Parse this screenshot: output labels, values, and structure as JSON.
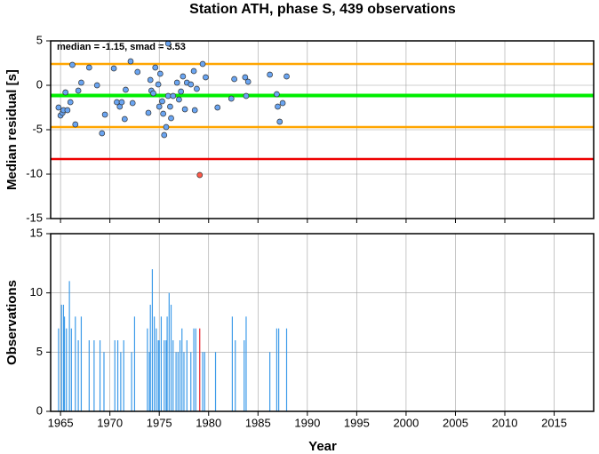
{
  "chart_data": [
    {
      "type": "scatter",
      "title": "Station ATH, phase S, 439 observations",
      "y_label": "Median residual [s]",
      "annotation": "median = -1.15, smad = 3.53",
      "xlim": [
        1964,
        2019
      ],
      "xticks": [
        1965,
        1970,
        1975,
        1980,
        1985,
        1990,
        1995,
        2000,
        2005,
        2010,
        2015
      ],
      "show_xtick_labels": false,
      "ylim": [
        -15,
        5
      ],
      "yticks": [
        5,
        0,
        -5,
        -10,
        -15
      ],
      "grid": true,
      "hlines": [
        {
          "value": 2.4,
          "color": "#ffa500"
        },
        {
          "value": -1.15,
          "color": "#00ee00"
        },
        {
          "value": -4.7,
          "color": "#ffa500"
        },
        {
          "value": -8.3,
          "color": "#ee0000"
        }
      ],
      "series": [
        {
          "color": "#6aa5f2",
          "x": [
            1964.8,
            1965.0,
            1965.2,
            1965.3,
            1965.5,
            1965.7,
            1966.0,
            1966.2,
            1966.5,
            1966.8,
            1967.1,
            1967.9,
            1968.7,
            1969.2,
            1969.5,
            1970.4,
            1970.7,
            1971.0,
            1971.2,
            1971.5,
            1971.6,
            1972.1,
            1972.3,
            1972.8,
            1973.9,
            1974.1,
            1974.2,
            1974.4,
            1974.6,
            1974.9,
            1975.0,
            1975.1,
            1975.3,
            1975.4,
            1975.5,
            1975.7,
            1975.9,
            1975.9,
            1976.1,
            1976.2,
            1976.4,
            1976.8,
            1977.0,
            1977.2,
            1977.4,
            1977.6,
            1977.8,
            1978.2,
            1978.5,
            1978.6,
            1978.8,
            1979.4,
            1979.7,
            1980.9,
            1982.3,
            1982.6,
            1983.7,
            1983.8,
            1984.0,
            1986.2,
            1986.9,
            1987.0,
            1987.2,
            1987.5,
            1987.9
          ],
          "values": [
            -2.5,
            -3.4,
            -3.1,
            -2.8,
            -0.8,
            -2.8,
            -1.9,
            2.3,
            -4.4,
            -0.6,
            0.3,
            2.0,
            0.0,
            -5.4,
            -3.3,
            1.9,
            -1.9,
            -2.4,
            -1.9,
            -3.8,
            -0.5,
            2.7,
            -2.0,
            1.5,
            -3.1,
            0.6,
            -0.6,
            -0.9,
            2.0,
            0.1,
            -2.4,
            1.3,
            -1.8,
            -3.2,
            -5.6,
            -4.7,
            4.7,
            -1.2,
            -2.4,
            -3.7,
            -1.2,
            0.3,
            -1.6,
            -0.7,
            1.0,
            -2.7,
            0.3,
            0.1,
            1.6,
            -2.8,
            -0.4,
            2.4,
            0.9,
            -2.5,
            -1.5,
            0.7,
            0.9,
            -1.2,
            0.4,
            1.2,
            -1.0,
            -2.4,
            -4.1,
            -2.0,
            1.0
          ]
        },
        {
          "color": "#ff5a4a",
          "x": [
            1979.1
          ],
          "values": [
            -10.1
          ]
        }
      ]
    },
    {
      "type": "bar",
      "y_label": "Observations",
      "x_label": "Year",
      "xlim": [
        1964,
        2019
      ],
      "xticks": [
        1965,
        1970,
        1975,
        1980,
        1985,
        1990,
        1995,
        2000,
        2005,
        2010,
        2015
      ],
      "show_xtick_labels": true,
      "ylim": [
        0,
        15
      ],
      "yticks": [
        0,
        5,
        10,
        15
      ],
      "grid": true,
      "series": [
        {
          "color": "#3d9be9",
          "x": [
            1964.8,
            1965.1,
            1965.3,
            1965.4,
            1965.6,
            1965.9,
            1966.1,
            1966.5,
            1966.8,
            1967.1,
            1967.9,
            1968.4,
            1969.0,
            1969.4,
            1970.5,
            1970.8,
            1971.1,
            1971.4,
            1972.2,
            1972.5,
            1973.8,
            1974.0,
            1974.1,
            1974.3,
            1974.5,
            1974.7,
            1974.9,
            1975.0,
            1975.2,
            1975.5,
            1975.7,
            1975.8,
            1976.0,
            1976.2,
            1976.4,
            1976.7,
            1976.9,
            1977.1,
            1977.3,
            1977.5,
            1977.8,
            1978.2,
            1978.5,
            1978.7,
            1979.4,
            1979.6,
            1980.7,
            1982.4,
            1982.7,
            1983.6,
            1983.8,
            1986.2,
            1986.9,
            1987.1,
            1987.9
          ],
          "values": [
            7,
            9,
            9,
            8,
            7,
            11,
            7,
            8,
            6,
            8,
            6,
            6,
            6,
            5,
            6,
            6,
            5,
            6,
            5,
            8,
            7,
            5,
            9,
            12,
            8,
            7,
            6,
            6,
            8,
            6,
            6,
            8,
            10,
            9,
            6,
            5,
            5,
            6,
            7,
            5,
            6,
            5,
            7,
            7,
            5,
            5,
            5,
            8,
            6,
            6,
            8,
            5,
            7,
            7,
            7
          ]
        },
        {
          "color": "#e8202a",
          "x": [
            1979.1
          ],
          "values": [
            7
          ]
        }
      ]
    }
  ]
}
